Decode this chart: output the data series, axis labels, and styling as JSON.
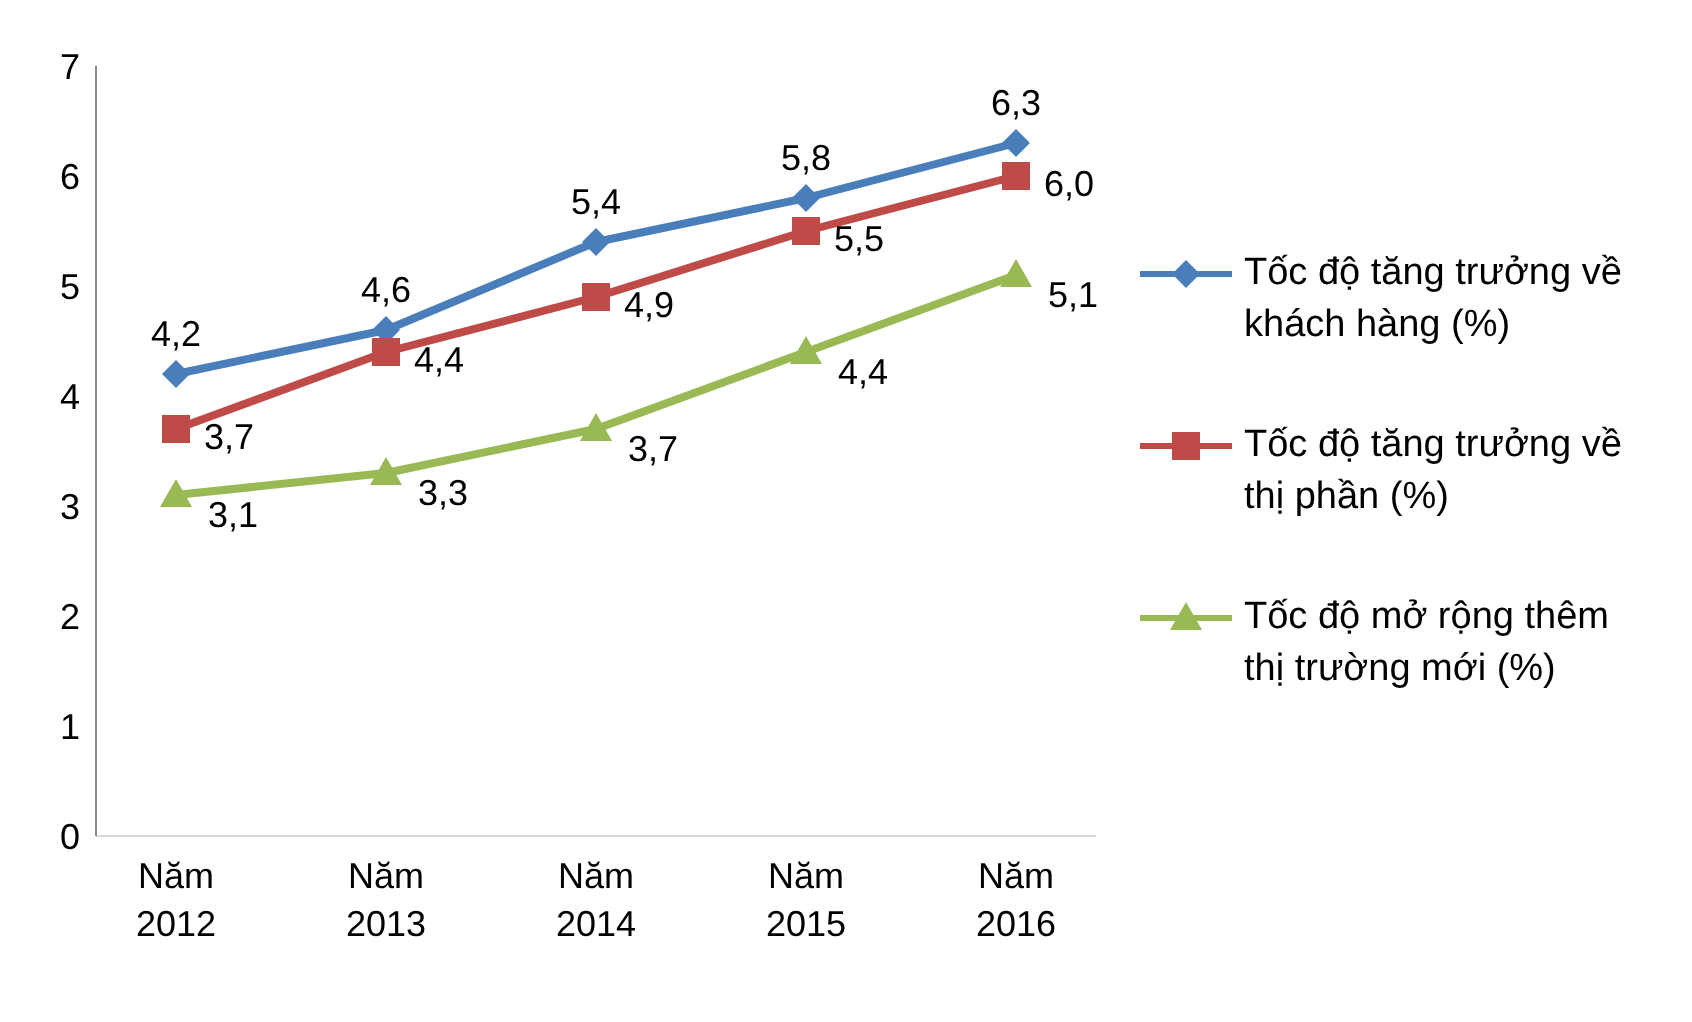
{
  "chart_data": {
    "type": "line",
    "categories": [
      "Năm 2012",
      "Năm 2013",
      "Năm 2014",
      "Năm 2015",
      "Năm 2016"
    ],
    "series": [
      {
        "name": "Tốc độ tăng trưởng về khách hàng (%)",
        "color": "#4a7ebb",
        "marker": "diamond",
        "values": [
          4.2,
          4.6,
          5.4,
          5.8,
          6.3
        ],
        "value_labels": [
          "4,2",
          "4,6",
          "5,4",
          "5,8",
          "6,3"
        ]
      },
      {
        "name": "Tốc độ tăng trưởng về thị phần (%)",
        "color": "#be4b48",
        "marker": "square",
        "values": [
          3.7,
          4.4,
          4.9,
          5.5,
          6.0
        ],
        "value_labels": [
          "3,7",
          "4,4",
          "4,9",
          "5,5",
          "6,0"
        ]
      },
      {
        "name": "Tốc độ mở rộng thêm thị trường mới (%)",
        "color": "#98b954",
        "marker": "triangle",
        "values": [
          3.1,
          3.3,
          3.7,
          4.4,
          5.1
        ],
        "value_labels": [
          "3,1",
          "3,3",
          "3,7",
          "4,4",
          "5,1"
        ]
      }
    ],
    "ylim": [
      0,
      7
    ],
    "yticks": [
      0,
      1,
      2,
      3,
      4,
      5,
      6,
      7
    ],
    "grid": false,
    "legend": "right",
    "line_style": "solid"
  }
}
